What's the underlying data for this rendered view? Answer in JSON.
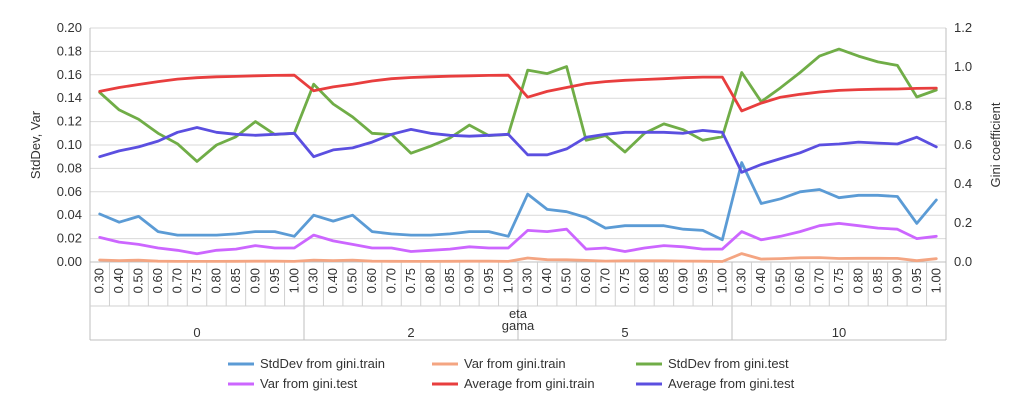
{
  "chart_data": {
    "type": "line",
    "ylabel": "StdDev, Var",
    "y2label": "Gini coefficient",
    "xlabel_inner": "eta",
    "xlabel_outer": "gama",
    "ylim": [
      0,
      0.2
    ],
    "y2lim": [
      0,
      1.2
    ],
    "yticks": [
      "0.00",
      "0.02",
      "0.04",
      "0.06",
      "0.08",
      "0.10",
      "0.12",
      "0.14",
      "0.16",
      "0.18",
      "0.20"
    ],
    "y2ticks": [
      "0.0",
      "0.2",
      "0.4",
      "0.6",
      "0.8",
      "1.0",
      "1.2"
    ],
    "grid": "horizontal",
    "legend_position": "bottom",
    "groups": [
      "0",
      "2",
      "5",
      "10"
    ],
    "eta": [
      "0.30",
      "0.40",
      "0.50",
      "0.60",
      "0.70",
      "0.75",
      "0.80",
      "0.85",
      "0.90",
      "0.95",
      "1.00"
    ],
    "series": [
      {
        "name": "StdDev from gini.train",
        "axis": "left",
        "color": "#5b9bd5",
        "values": [
          0.041,
          0.034,
          0.039,
          0.026,
          0.023,
          0.023,
          0.023,
          0.024,
          0.026,
          0.026,
          0.022,
          0.04,
          0.035,
          0.04,
          0.026,
          0.024,
          0.023,
          0.023,
          0.024,
          0.026,
          0.026,
          0.022,
          0.058,
          0.045,
          0.043,
          0.038,
          0.029,
          0.031,
          0.031,
          0.031,
          0.028,
          0.027,
          0.019,
          0.085,
          0.05,
          0.054,
          0.06,
          0.062,
          0.055,
          0.057,
          0.057,
          0.056,
          0.033,
          0.053
        ]
      },
      {
        "name": "Var from gini.train",
        "axis": "left",
        "color": "#f4a582",
        "values": [
          0.0017,
          0.0012,
          0.0015,
          0.0007,
          0.0005,
          0.0005,
          0.0005,
          0.0006,
          0.0007,
          0.0007,
          0.0005,
          0.0016,
          0.0012,
          0.0016,
          0.0007,
          0.0006,
          0.0005,
          0.0005,
          0.0006,
          0.0007,
          0.0007,
          0.0005,
          0.0034,
          0.002,
          0.0019,
          0.0014,
          0.0008,
          0.001,
          0.001,
          0.001,
          0.0008,
          0.0007,
          0.0004,
          0.0072,
          0.0025,
          0.0029,
          0.0036,
          0.0038,
          0.003,
          0.0032,
          0.0032,
          0.0031,
          0.0011,
          0.0028
        ]
      },
      {
        "name": "StdDev from gini.test",
        "axis": "left",
        "color": "#70ad47",
        "values": [
          0.145,
          0.13,
          0.122,
          0.11,
          0.101,
          0.086,
          0.1,
          0.107,
          0.12,
          0.109,
          0.11,
          0.152,
          0.135,
          0.124,
          0.11,
          0.109,
          0.093,
          0.099,
          0.106,
          0.117,
          0.108,
          0.109,
          0.164,
          0.161,
          0.167,
          0.104,
          0.108,
          0.094,
          0.11,
          0.118,
          0.113,
          0.104,
          0.107,
          0.162,
          0.137,
          0.149,
          0.162,
          0.176,
          0.182,
          0.176,
          0.171,
          0.168,
          0.141,
          0.147
        ]
      },
      {
        "name": "Var from gini.test",
        "axis": "left",
        "color": "#cc66ff",
        "values": [
          0.021,
          0.017,
          0.015,
          0.012,
          0.01,
          0.007,
          0.01,
          0.011,
          0.014,
          0.012,
          0.012,
          0.023,
          0.018,
          0.015,
          0.012,
          0.012,
          0.009,
          0.01,
          0.011,
          0.013,
          0.012,
          0.012,
          0.027,
          0.026,
          0.028,
          0.011,
          0.012,
          0.009,
          0.012,
          0.014,
          0.013,
          0.011,
          0.011,
          0.026,
          0.019,
          0.022,
          0.026,
          0.031,
          0.033,
          0.031,
          0.029,
          0.028,
          0.02,
          0.022
        ]
      },
      {
        "name": "Average from gini.train",
        "axis": "right",
        "color": "#e83e3e",
        "values": [
          0.875,
          0.895,
          0.91,
          0.925,
          0.938,
          0.945,
          0.95,
          0.952,
          0.955,
          0.957,
          0.958,
          0.878,
          0.898,
          0.912,
          0.928,
          0.94,
          0.946,
          0.95,
          0.953,
          0.955,
          0.957,
          0.958,
          0.845,
          0.875,
          0.895,
          0.915,
          0.925,
          0.932,
          0.936,
          0.94,
          0.945,
          0.948,
          0.948,
          0.775,
          0.815,
          0.845,
          0.86,
          0.872,
          0.88,
          0.884,
          0.886,
          0.887,
          0.89,
          0.892
        ]
      },
      {
        "name": "Average from gini.test",
        "axis": "right",
        "color": "#5b4fe0",
        "values": [
          0.54,
          0.57,
          0.59,
          0.62,
          0.665,
          0.69,
          0.665,
          0.655,
          0.65,
          0.655,
          0.66,
          0.54,
          0.575,
          0.585,
          0.615,
          0.655,
          0.68,
          0.66,
          0.65,
          0.645,
          0.65,
          0.655,
          0.55,
          0.55,
          0.58,
          0.64,
          0.655,
          0.665,
          0.665,
          0.665,
          0.66,
          0.675,
          0.665,
          0.46,
          0.5,
          0.53,
          0.56,
          0.6,
          0.605,
          0.615,
          0.61,
          0.605,
          0.64,
          0.59
        ]
      }
    ]
  }
}
